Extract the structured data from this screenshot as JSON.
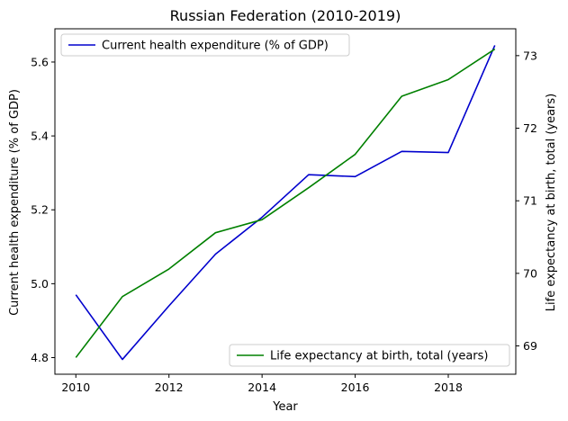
{
  "chart_data": {
    "type": "line",
    "title": "Russian Federation (2010-2019)",
    "xlabel": "Year",
    "ylabel_left": "Current health expenditure (% of GDP)",
    "ylabel_right": "Life expectancy at birth, total (years)",
    "x": [
      2010,
      2011,
      2012,
      2013,
      2014,
      2015,
      2016,
      2017,
      2018,
      2019
    ],
    "x_ticks": [
      "2010",
      "2012",
      "2014",
      "2016",
      "2018"
    ],
    "xlim": [
      2009.55,
      2019.45
    ],
    "ylim_left": [
      4.755,
      5.69
    ],
    "yticks_left": [
      "4.8",
      "5.0",
      "5.2",
      "5.4",
      "5.6"
    ],
    "ylim_right": [
      68.61,
      73.37
    ],
    "yticks_right": [
      "69",
      "70",
      "71",
      "72",
      "73"
    ],
    "series": [
      {
        "name": "Current health expenditure (% of GDP)",
        "axis": "left",
        "color": "#0000cd",
        "values": [
          4.97,
          4.795,
          4.94,
          5.08,
          5.18,
          5.295,
          5.29,
          5.358,
          5.355,
          5.645
        ]
      },
      {
        "name": "Life expectancy at birth, total (years)",
        "axis": "right",
        "color": "#008000",
        "values": [
          68.84,
          69.68,
          70.06,
          70.56,
          70.74,
          71.18,
          71.64,
          72.44,
          72.67,
          73.09
        ]
      }
    ],
    "legend_left_placement": "upper-left",
    "legend_right_placement": "lower-right",
    "grid": false
  }
}
